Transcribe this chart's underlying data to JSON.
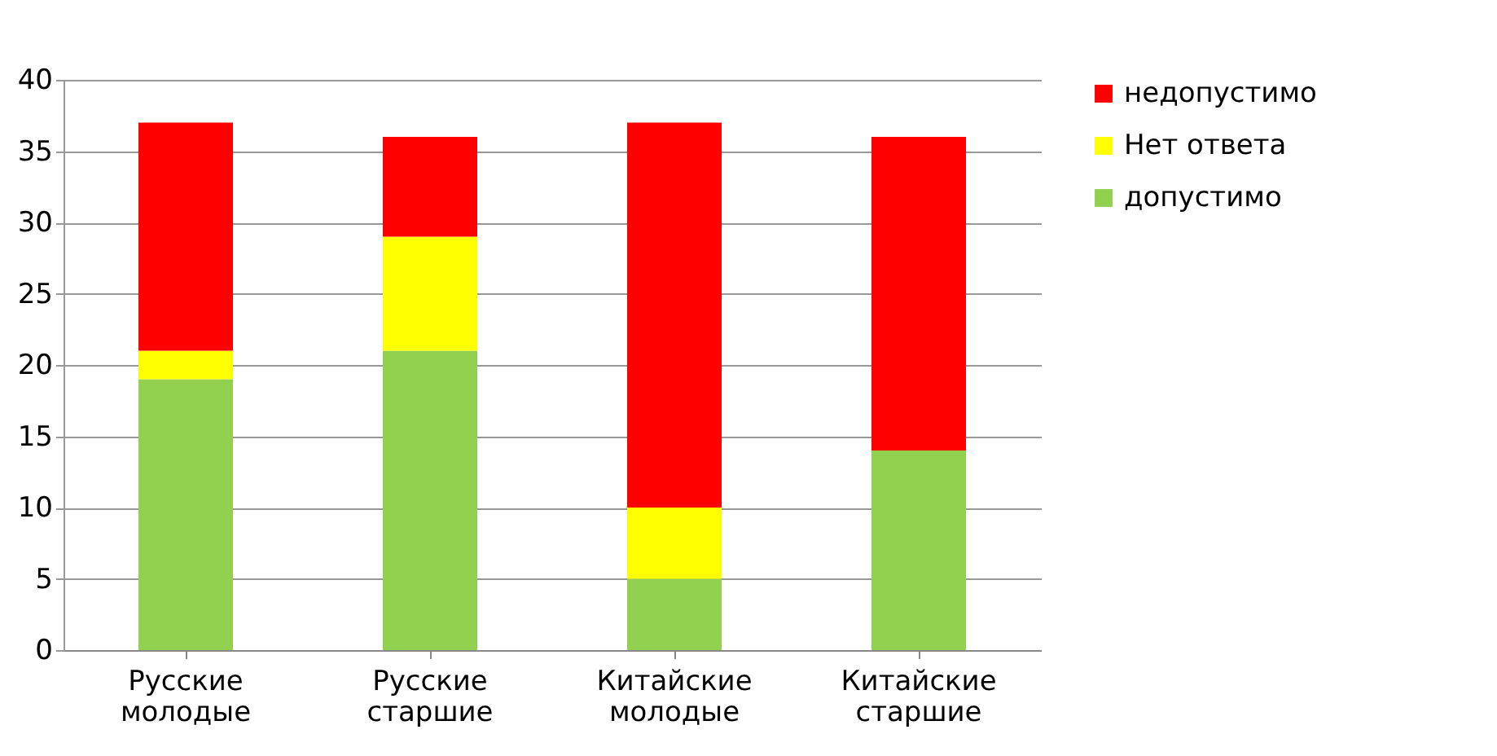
{
  "chart_data": {
    "type": "bar",
    "stacked": true,
    "categories": [
      "Русские молодые",
      "Русские старшие",
      "Китайские молодые",
      "Китайские старшие"
    ],
    "series": [
      {
        "name": "допустимо",
        "color": "#92d050",
        "values": [
          19,
          21,
          5,
          14
        ]
      },
      {
        "name": "Нет ответа",
        "color": "#ffff00",
        "values": [
          2,
          8,
          5,
          0
        ]
      },
      {
        "name": "недопустимо",
        "color": "#ff0000",
        "values": [
          16,
          7,
          27,
          22
        ]
      }
    ],
    "ylim": [
      0,
      40
    ],
    "yticks": [
      0,
      5,
      10,
      15,
      20,
      25,
      30,
      35,
      40
    ],
    "grid": "y",
    "legend": "right"
  }
}
